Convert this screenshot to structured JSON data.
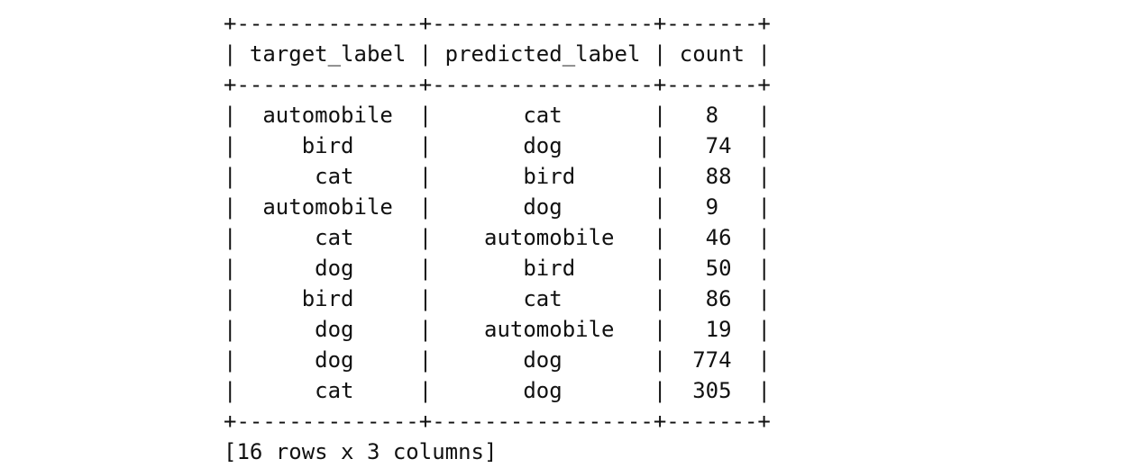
{
  "table": {
    "columns": [
      "target_label",
      "predicted_label",
      "count"
    ],
    "rows": [
      [
        "automobile",
        "cat",
        "8"
      ],
      [
        "bird",
        "dog",
        "74"
      ],
      [
        "cat",
        "bird",
        "88"
      ],
      [
        "automobile",
        "dog",
        "9"
      ],
      [
        "cat",
        "automobile",
        "46"
      ],
      [
        "dog",
        "bird",
        "50"
      ],
      [
        "bird",
        "cat",
        "86"
      ],
      [
        "dog",
        "automobile",
        "19"
      ],
      [
        "dog",
        "dog",
        "774"
      ],
      [
        "cat",
        "dog",
        "305"
      ]
    ],
    "summary": "[16 rows x 3 columns]"
  }
}
